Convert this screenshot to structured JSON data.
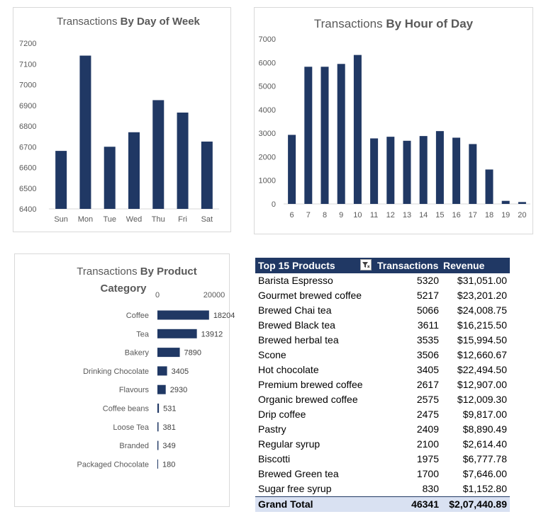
{
  "chart_data": [
    {
      "type": "bar",
      "title_regular": "Transactions ",
      "title_bold": "By Day of Week",
      "categories": [
        "Sun",
        "Mon",
        "Tue",
        "Wed",
        "Thu",
        "Fri",
        "Sat"
      ],
      "values": [
        6680,
        7140,
        6700,
        6770,
        6925,
        6865,
        6725
      ],
      "ylim": [
        6400,
        7200
      ],
      "yticks": [
        6400,
        6500,
        6600,
        6700,
        6800,
        6900,
        7000,
        7100,
        7200
      ],
      "grid": false,
      "bar_color": "#203864"
    },
    {
      "type": "bar",
      "title_regular": "Transactions ",
      "title_bold": "By Hour of Day",
      "categories": [
        "6",
        "7",
        "8",
        "9",
        "10",
        "11",
        "12",
        "13",
        "14",
        "15",
        "16",
        "17",
        "18",
        "19",
        "20"
      ],
      "values": [
        2930,
        5820,
        5820,
        5940,
        6320,
        2780,
        2850,
        2680,
        2880,
        3090,
        2810,
        2540,
        1460,
        130,
        80
      ],
      "ylim": [
        0,
        7000
      ],
      "yticks": [
        0,
        1000,
        2000,
        3000,
        4000,
        5000,
        6000,
        7000
      ],
      "grid": false,
      "bar_color": "#203864"
    },
    {
      "type": "bar",
      "orientation": "horizontal",
      "title_regular": "Transactions ",
      "title_bold": "By Product",
      "title_bold_line2": "Category",
      "categories": [
        "Coffee",
        "Tea",
        "Bakery",
        "Drinking Chocolate",
        "Flavours",
        "Coffee beans",
        "Loose Tea",
        "Branded",
        "Packaged Chocolate"
      ],
      "values": [
        18204,
        13912,
        7890,
        3405,
        2930,
        531,
        381,
        349,
        180
      ],
      "data_labels": [
        "18204",
        "13912",
        "7890",
        "3405",
        "2930",
        "531",
        "381",
        "349",
        "180"
      ],
      "xlim": [
        0,
        20000
      ],
      "xticks": [
        0,
        20000
      ],
      "grid": false,
      "bar_color": "#203864"
    }
  ],
  "pivot": {
    "headers": {
      "product": "Top 15 Products",
      "transactions": "Transactions",
      "revenue": "Revenue"
    },
    "rows": [
      {
        "name": "Barista Espresso",
        "tx": "5320",
        "rev": "$31,051.00"
      },
      {
        "name": "Gourmet brewed coffee",
        "tx": "5217",
        "rev": "$23,201.20"
      },
      {
        "name": "Brewed Chai tea",
        "tx": "5066",
        "rev": "$24,008.75"
      },
      {
        "name": "Brewed Black tea",
        "tx": "3611",
        "rev": "$16,215.50"
      },
      {
        "name": "Brewed herbal tea",
        "tx": "3535",
        "rev": "$15,994.50"
      },
      {
        "name": "Scone",
        "tx": "3506",
        "rev": "$12,660.67"
      },
      {
        "name": "Hot chocolate",
        "tx": "3405",
        "rev": "$22,494.50"
      },
      {
        "name": "Premium brewed coffee",
        "tx": "2617",
        "rev": "$12,907.00"
      },
      {
        "name": "Organic brewed coffee",
        "tx": "2575",
        "rev": "$12,009.30"
      },
      {
        "name": "Drip coffee",
        "tx": "2475",
        "rev": "$9,817.00"
      },
      {
        "name": "Pastry",
        "tx": "2409",
        "rev": "$8,890.49"
      },
      {
        "name": "Regular syrup",
        "tx": "2100",
        "rev": "$2,614.40"
      },
      {
        "name": "Biscotti",
        "tx": "1975",
        "rev": "$6,777.78"
      },
      {
        "name": "Brewed Green tea",
        "tx": "1700",
        "rev": "$7,646.00"
      },
      {
        "name": "Sugar free syrup",
        "tx": "830",
        "rev": "$1,152.80"
      }
    ],
    "total": {
      "name": "Grand Total",
      "tx": "46341",
      "rev": "$2,07,440.89"
    },
    "filter_icon": "filter-icon"
  }
}
